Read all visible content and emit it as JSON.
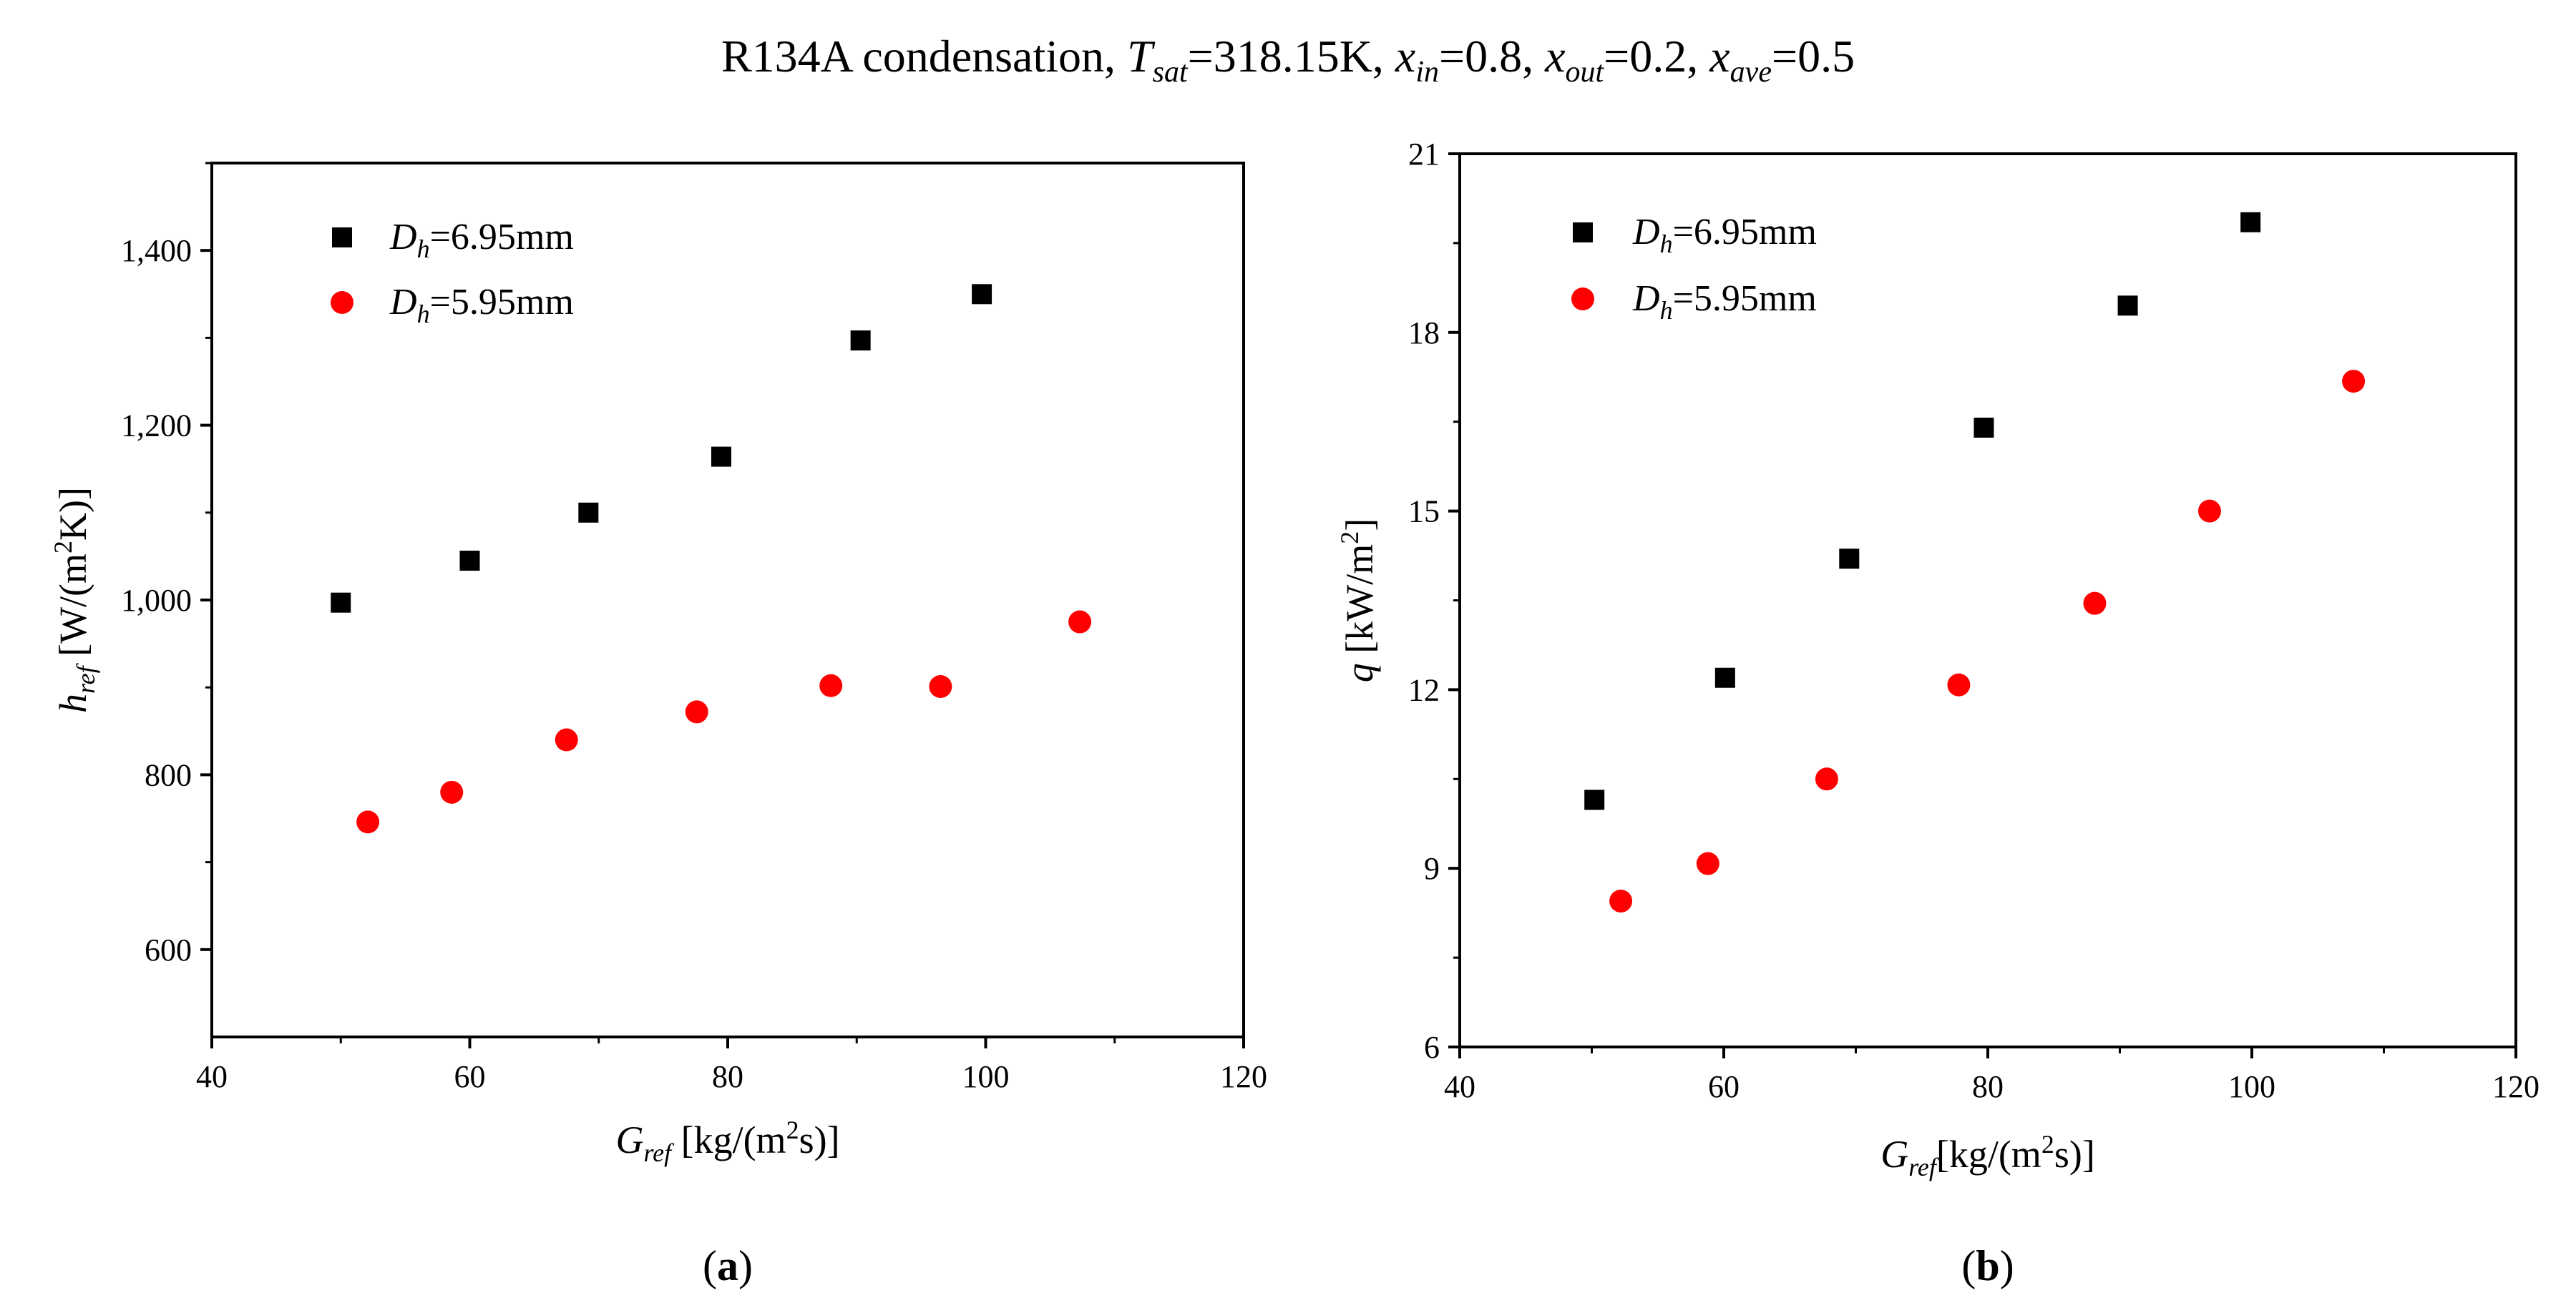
{
  "figure": {
    "title": {
      "prefix": "R134A condensation, ",
      "tsat_sym": "T",
      "tsat_sub": "sat",
      "tsat_val": "=318.15K, ",
      "xin_sym": "x",
      "xin_sub": "in",
      "xin_val": "=0.8, ",
      "xout_sym": "x",
      "xout_sub": "out",
      "xout_val": "=0.2, ",
      "xave_sym": "x",
      "xave_sub": "ave",
      "xave_val": "=0.5"
    }
  },
  "chart_data": [
    {
      "type": "scatter",
      "panel_label": "a",
      "xlabel": {
        "sym": "G",
        "sub": "ref",
        "unit_pre": " [kg/(m",
        "unit_sup": "2",
        "unit_post": "s)]"
      },
      "ylabel": {
        "sym": "h",
        "sub": "ref",
        "unit_pre": " [W/(m",
        "unit_sup": "2",
        "unit_post": "K)]"
      },
      "xlim": [
        40,
        120
      ],
      "ylim": [
        500,
        1500
      ],
      "xticks": [
        40,
        60,
        80,
        100,
        120
      ],
      "xtick_labels": [
        "40",
        "60",
        "80",
        "100",
        "120"
      ],
      "yticks": [
        600,
        800,
        1000,
        1200,
        1400
      ],
      "ytick_labels": [
        "600",
        "800",
        "1,000",
        "1,200",
        "1,400"
      ],
      "legend_position": "top-left",
      "series": [
        {
          "name_sym": "D",
          "name_sub": "h",
          "name_val": "=6.95mm",
          "marker": "square",
          "color": "#000000",
          "x": [
            50,
            60,
            69.2,
            79.5,
            90.3,
            99.7
          ],
          "y": [
            997,
            1045,
            1100,
            1164,
            1297,
            1350
          ]
        },
        {
          "name_sym": "D",
          "name_sub": "h",
          "name_val": "=5.95mm",
          "marker": "circle",
          "color": "#ff0000",
          "x": [
            52.1,
            58.6,
            67.5,
            77.6,
            88,
            96.5,
            107.3
          ],
          "y": [
            746,
            780,
            840,
            872,
            902,
            901,
            975
          ]
        }
      ]
    },
    {
      "type": "scatter",
      "panel_label": "b",
      "xlabel": {
        "sym": "G",
        "sub": "ref",
        "unit_pre": "[kg/(m",
        "unit_sup": "2",
        "unit_post": "s)]"
      },
      "ylabel": {
        "sym": "q",
        "sub": "",
        "unit_pre": " [kW/m",
        "unit_sup": "2",
        "unit_post": "]"
      },
      "xlim": [
        40,
        120
      ],
      "ylim": [
        6,
        21
      ],
      "xticks": [
        40,
        60,
        80,
        100,
        120
      ],
      "xtick_labels": [
        "40",
        "60",
        "80",
        "100",
        "120"
      ],
      "yticks": [
        6,
        9,
        12,
        15,
        18,
        21
      ],
      "ytick_labels": [
        "6",
        "9",
        "12",
        "15",
        "18",
        "21"
      ],
      "legend_position": "top-left",
      "series": [
        {
          "name_sym": "D",
          "name_sub": "h",
          "name_val": "=6.95mm",
          "marker": "square",
          "color": "#000000",
          "x": [
            50.2,
            60.1,
            69.5,
            79.7,
            90.6,
            99.9
          ],
          "y": [
            10.15,
            12.2,
            14.2,
            16.4,
            18.45,
            19.85
          ]
        },
        {
          "name_sym": "D",
          "name_sub": "h",
          "name_val": "=5.95mm",
          "marker": "circle",
          "color": "#ff0000",
          "x": [
            52.2,
            58.8,
            67.8,
            77.8,
            88.1,
            96.8,
            107.7
          ],
          "y": [
            8.45,
            9.08,
            10.5,
            12.08,
            13.45,
            15,
            17.18
          ]
        }
      ]
    }
  ]
}
